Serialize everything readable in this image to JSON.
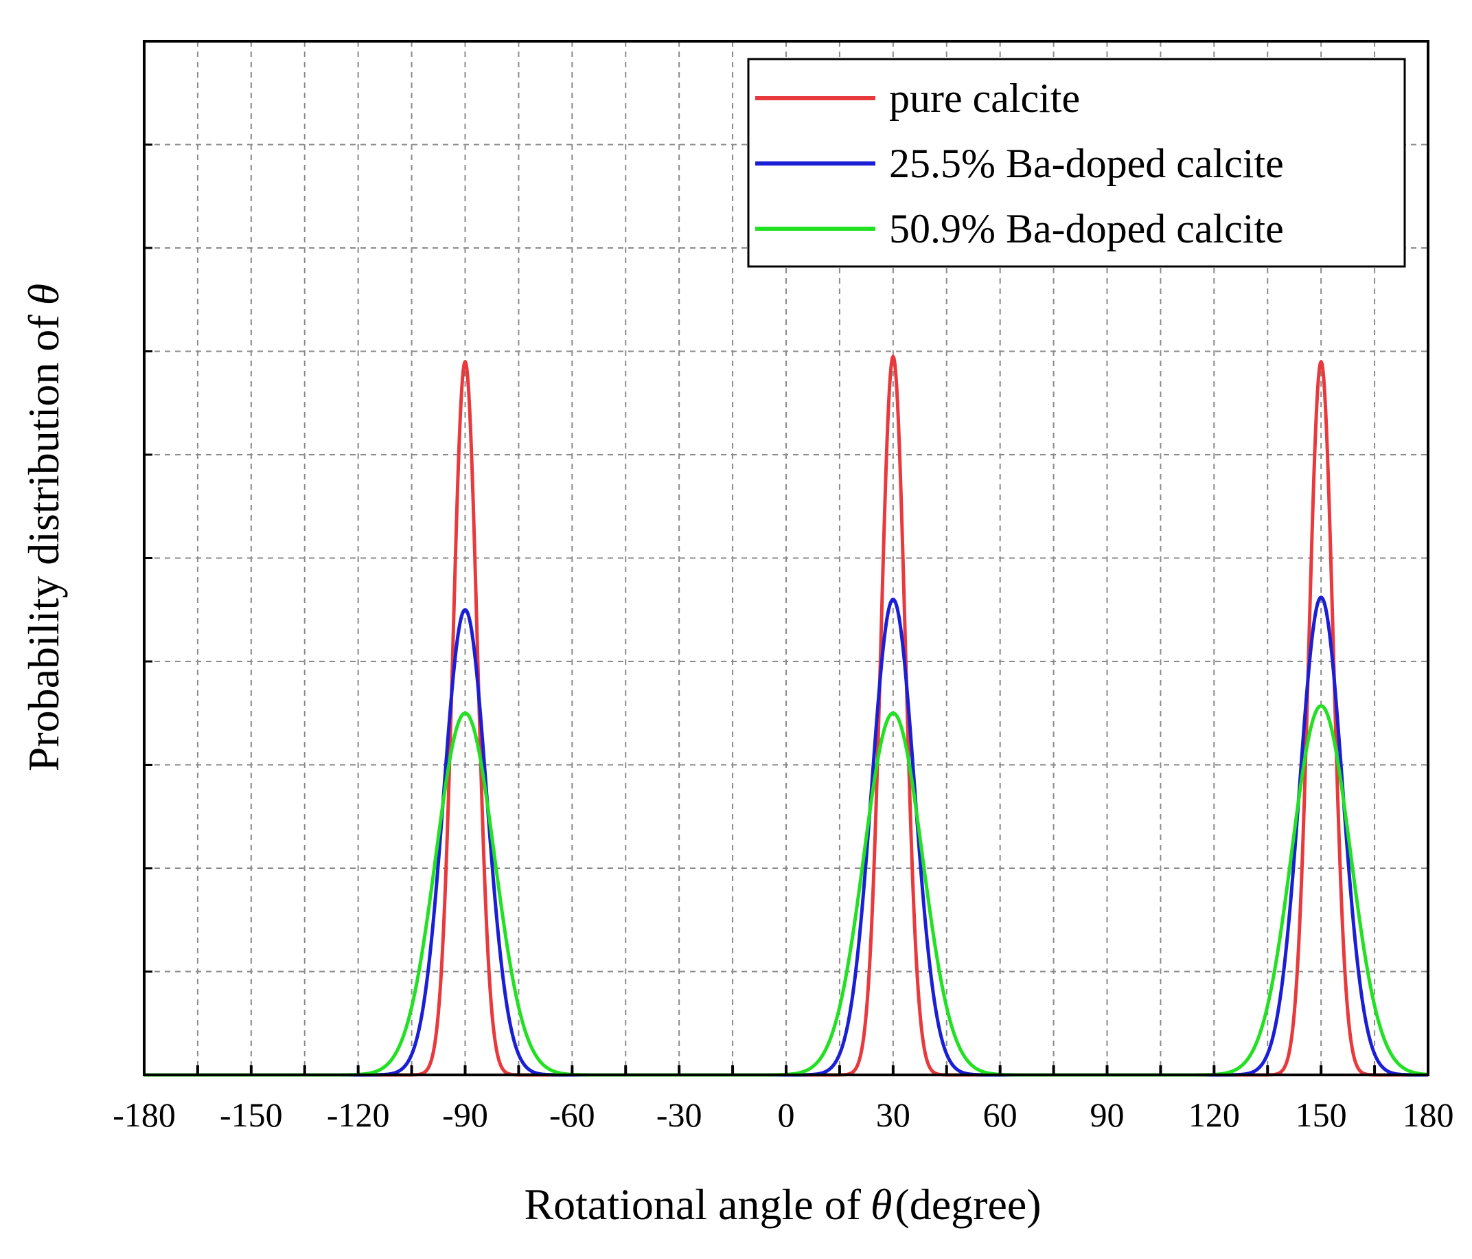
{
  "chart_data": {
    "type": "line",
    "title": "",
    "xlabel": "Rotational angle of",
    "xlabel_symbol": "θ",
    "xlabel_suffix": "(degree)",
    "ylabel": "Probability distribution of",
    "ylabel_symbol": "θ",
    "xlim": [
      -180,
      180
    ],
    "ylim": [
      0,
      1
    ],
    "x_ticks": [
      -180,
      -150,
      -120,
      -90,
      -60,
      -30,
      0,
      30,
      60,
      90,
      120,
      150,
      180
    ],
    "x_tick_labels": [
      "-180",
      "-150",
      "-120",
      "-90",
      "-60",
      "-30",
      "0",
      "30",
      "60",
      "90",
      "120",
      "150",
      "180"
    ],
    "x_grid_step": 15,
    "y_grid_step": 0.1,
    "grid": true,
    "legend_position": "top-right",
    "series": [
      {
        "name": "pure calcite",
        "color": "#e8393c",
        "peaks": [
          {
            "center": -90,
            "height": 0.69,
            "sigma": 3.4
          },
          {
            "center": 30,
            "height": 0.695,
            "sigma": 3.4
          },
          {
            "center": 150,
            "height": 0.69,
            "sigma": 3.4
          }
        ]
      },
      {
        "name": "25.5% Ba-doped calcite",
        "color": "#1a1fd6",
        "peaks": [
          {
            "center": -90,
            "height": 0.45,
            "sigma": 6.0
          },
          {
            "center": 30,
            "height": 0.46,
            "sigma": 6.0
          },
          {
            "center": 150,
            "height": 0.462,
            "sigma": 6.0
          }
        ]
      },
      {
        "name": "50.9% Ba-doped calcite",
        "color": "#22e022",
        "peaks": [
          {
            "center": -90,
            "height": 0.35,
            "sigma": 8.2
          },
          {
            "center": 30,
            "height": 0.35,
            "sigma": 8.2
          },
          {
            "center": 150,
            "height": 0.357,
            "sigma": 8.2
          }
        ]
      }
    ]
  }
}
